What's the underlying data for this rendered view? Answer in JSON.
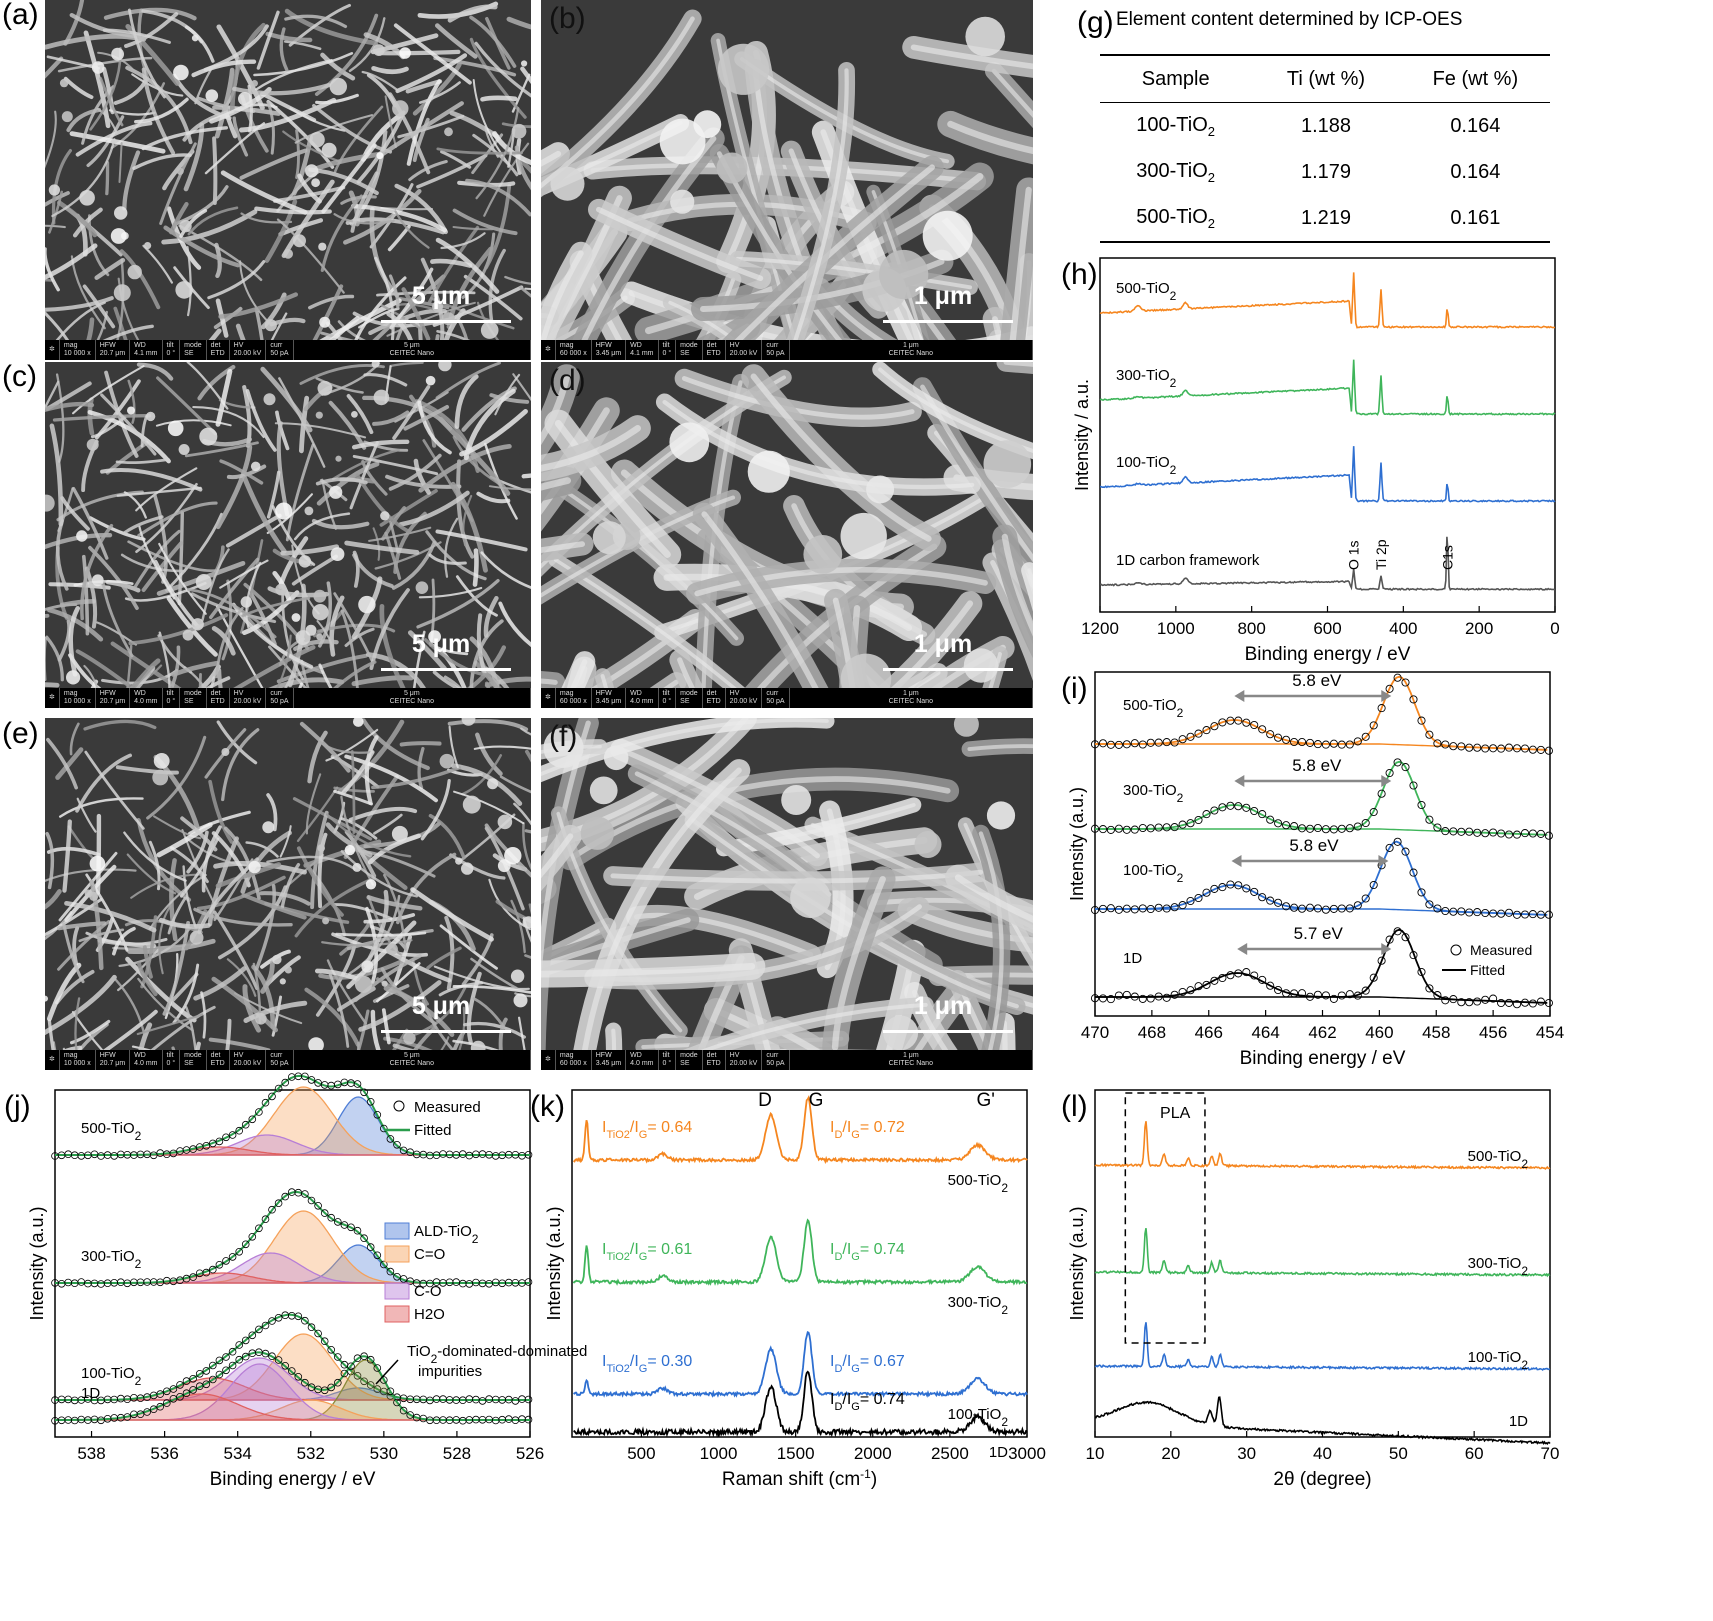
{
  "panels": {
    "a": "(a)",
    "b": "(b)",
    "c": "(c)",
    "d": "(d)",
    "e": "(e)",
    "f": "(f)",
    "g": "(g)",
    "h": "(h)",
    "i": "(i)",
    "j": "(j)",
    "k": "(k)",
    "l": "(l)"
  },
  "sem": {
    "low_mag_scale": "5 μm",
    "high_mag_scale": "1 μm",
    "info_low": {
      "mag": "10 000 x",
      "hfw": "20.7 μm",
      "hv": "20.00 kV",
      "curr": "50 pA",
      "lab": "CEITEC Nano"
    },
    "info_high": {
      "mag": "60 000 x",
      "hfw": "3.45 μm",
      "hv": "20.00 kV",
      "curr": "50 pA",
      "lab": "CEITEC Nano"
    },
    "wd": [
      "4.1 mm",
      "4.1 mm",
      "4.0 mm",
      "4.0 mm",
      "4.0 mm",
      "4.0 mm"
    ],
    "labels": {
      "mag": "mag",
      "hfw": "HFW",
      "wd": "WD",
      "tilt": "tilt",
      "mode": "mode",
      "det": "det",
      "hv": "HV",
      "curr": "curr",
      "tilt_v": "0 °",
      "mode_v": "SE",
      "det_v": "ETD",
      "bar5": "5 μm",
      "bar1": "1 μm"
    }
  },
  "table": {
    "title": "Element content determined by ICP-OES",
    "headers": [
      "Sample",
      "Ti (wt %)",
      "Fe (wt %)"
    ],
    "rows": [
      {
        "sample": "100-TiO",
        "sub": "2",
        "ti": "1.188",
        "fe": "0.164"
      },
      {
        "sample": "300-TiO",
        "sub": "2",
        "ti": "1.179",
        "fe": "0.164"
      },
      {
        "sample": "500-TiO",
        "sub": "2",
        "ti": "1.219",
        "fe": "0.161"
      }
    ]
  },
  "chart_data": [
    {
      "panel": "h",
      "type": "line",
      "xlabel": "Binding energy / eV",
      "ylabel": "Intensity / a.u.",
      "xlim": [
        1200,
        0
      ],
      "xticks": [
        1200,
        1000,
        800,
        600,
        400,
        200,
        0
      ],
      "series": [
        {
          "name": "500-TiO2",
          "color": "#f5861f"
        },
        {
          "name": "300-TiO2",
          "color": "#3fb55a"
        },
        {
          "name": "100-TiO2",
          "color": "#2e6fd1"
        },
        {
          "name": "1D carbon framework",
          "color": "#555555"
        }
      ],
      "peaks": [
        {
          "label": "O 1s",
          "x": 531
        },
        {
          "label": "Ti 2p",
          "x": 459
        },
        {
          "label": "C1s",
          "x": 284
        }
      ]
    },
    {
      "panel": "i",
      "type": "line",
      "xlabel": "Binding energy / eV",
      "ylabel": "Intensity (a.u.)",
      "xlim": [
        470,
        454
      ],
      "xticks": [
        470,
        468,
        466,
        464,
        462,
        460,
        458,
        456,
        454
      ],
      "series": [
        {
          "name": "500-TiO2",
          "color": "#f5861f",
          "splitting": "5.8 eV",
          "peak_main": 459.3,
          "peak_sat": 465.1
        },
        {
          "name": "300-TiO2",
          "color": "#3fb55a",
          "splitting": "5.8 eV",
          "peak_main": 459.3,
          "peak_sat": 465.1
        },
        {
          "name": "100-TiO2",
          "color": "#2e6fd1",
          "splitting": "5.8 eV",
          "peak_main": 459.4,
          "peak_sat": 465.2
        },
        {
          "name": "1D",
          "color": "#000000",
          "splitting": "5.7 eV",
          "peak_main": 459.3,
          "peak_sat": 465.0
        }
      ],
      "legend": [
        "Measured",
        "Fitted"
      ]
    },
    {
      "panel": "j",
      "type": "line",
      "xlabel": "Binding energy / eV",
      "ylabel": "Intensity (a.u.)",
      "xlim": [
        539,
        526
      ],
      "xticks": [
        538,
        536,
        534,
        532,
        530,
        528,
        526
      ],
      "series": [
        {
          "name": "500-TiO2"
        },
        {
          "name": "300-TiO2"
        },
        {
          "name": "100-TiO2"
        },
        {
          "name": "1D"
        }
      ],
      "components": [
        {
          "name": "ALD-TiO2",
          "color": "#4f7ed6"
        },
        {
          "name": "C=O",
          "color": "#f5a15a"
        },
        {
          "name": "C-O",
          "color": "#b77ed6"
        },
        {
          "name": "H2O",
          "color": "#e06060"
        }
      ],
      "legend": [
        "Measured",
        "Fitted"
      ],
      "annotation": "TiO2-dominated impurities"
    },
    {
      "panel": "k",
      "type": "line",
      "xlabel": "Raman shift (cm-1)",
      "ylabel": "Intensity (a.u.)",
      "xlim": [
        50,
        3000
      ],
      "xticks": [
        500,
        1000,
        1500,
        2000,
        2500,
        3000
      ],
      "bands": [
        {
          "label": "D",
          "x": 1340
        },
        {
          "label": "G",
          "x": 1580
        },
        {
          "label": "G'",
          "x": 2680
        }
      ],
      "series": [
        {
          "name": "500-TiO2",
          "color": "#f5861f",
          "ITiO2_IG": "0.64",
          "ID_IG": "0.72"
        },
        {
          "name": "300-TiO2",
          "color": "#3fb55a",
          "ITiO2_IG": "0.61",
          "ID_IG": "0.74"
        },
        {
          "name": "100-TiO2",
          "color": "#2e6fd1",
          "ITiO2_IG": "0.30",
          "ID_IG": "0.67"
        },
        {
          "name": "1D",
          "color": "#000000",
          "ID_IG": "0.74"
        }
      ]
    },
    {
      "panel": "l",
      "type": "line",
      "xlabel": "2θ (degree)",
      "ylabel": "Intensity (a.u.)",
      "xlim": [
        10,
        70
      ],
      "xticks": [
        10,
        20,
        30,
        40,
        50,
        60,
        70
      ],
      "series": [
        {
          "name": "500-TiO2",
          "color": "#f5861f"
        },
        {
          "name": "300-TiO2",
          "color": "#3fb55a"
        },
        {
          "name": "100-TiO2",
          "color": "#2e6fd1"
        },
        {
          "name": "1D",
          "color": "#000000"
        }
      ],
      "box_label": "PLA",
      "box_range": [
        14,
        24.5
      ]
    }
  ]
}
